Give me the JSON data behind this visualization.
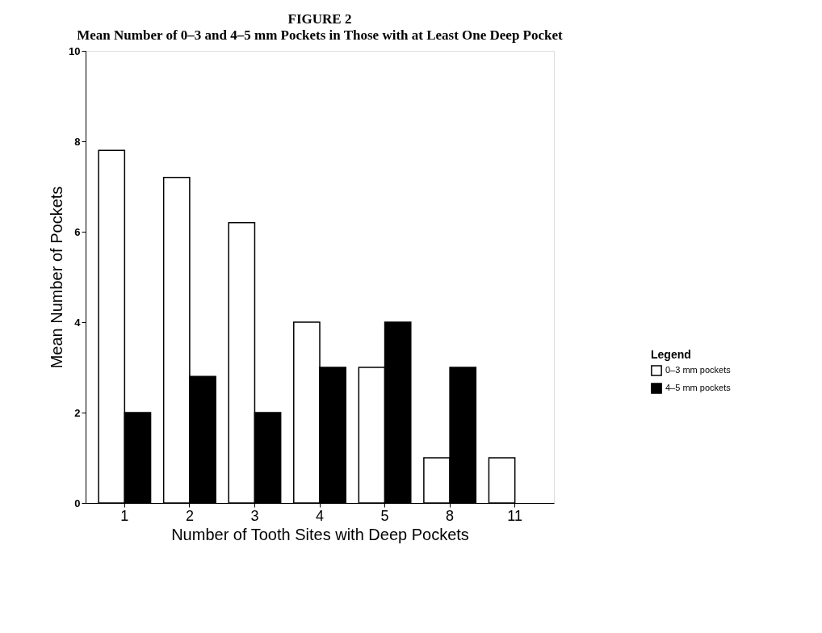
{
  "chart_data": {
    "type": "bar",
    "title": "FIGURE 2",
    "subtitle": "Mean Number of 0–3 and 4–5 mm Pockets in Those with at Least One Deep Pocket",
    "xlabel": "Number of Tooth Sites with Deep Pockets",
    "ylabel": "Mean Number of Pockets",
    "legend_title": "Legend",
    "categories": [
      "1",
      "2",
      "3",
      "4",
      "5",
      "8",
      "11"
    ],
    "series": [
      {
        "name": "0–3 mm pockets",
        "color": "#ffffff",
        "values": [
          7.8,
          7.2,
          6.2,
          4.0,
          3.0,
          1.0,
          1.0
        ]
      },
      {
        "name": "4–5 mm pockets",
        "color": "#000000",
        "values": [
          2.0,
          2.8,
          2.0,
          3.0,
          4.0,
          3.0,
          null
        ]
      }
    ],
    "ylim": [
      0,
      10
    ],
    "yticks": [
      0,
      2,
      4,
      6,
      8,
      10
    ],
    "grid": false,
    "legend": "bottom right"
  }
}
